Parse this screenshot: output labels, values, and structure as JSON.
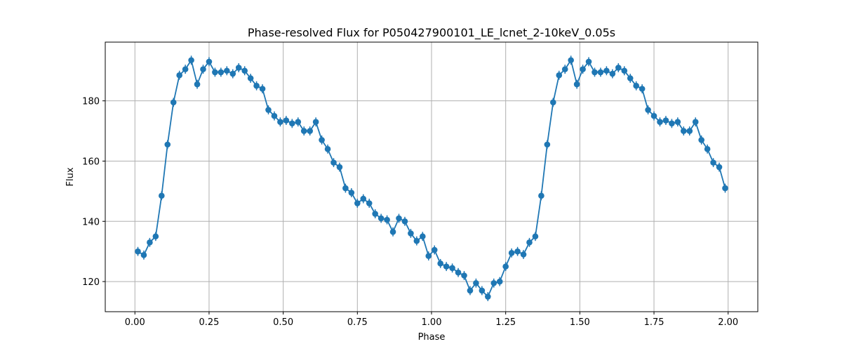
{
  "chart_data": {
    "type": "line",
    "title": "Phase-resolved Flux for P050427900101_LE_lcnet_2-10keV_0.05s",
    "xlabel": "Phase",
    "ylabel": "Flux",
    "xlim": [
      -0.1,
      2.1
    ],
    "ylim": [
      110,
      199.5
    ],
    "xticks": [
      0.0,
      0.25,
      0.5,
      0.75,
      1.0,
      1.25,
      1.5,
      1.75,
      2.0
    ],
    "xtick_labels": [
      "0.00",
      "0.25",
      "0.50",
      "0.75",
      "1.00",
      "1.25",
      "1.50",
      "1.75",
      "2.00"
    ],
    "yticks": [
      120,
      140,
      160,
      180
    ],
    "ytick_labels": [
      "120",
      "140",
      "160",
      "180"
    ],
    "grid": true,
    "color": "#1f77b4",
    "error": 1.5,
    "series": [
      {
        "x": [
          0.01,
          0.03,
          0.05,
          0.07,
          0.09,
          0.11,
          0.13,
          0.15,
          0.17,
          0.19,
          0.21,
          0.23,
          0.25,
          0.27,
          0.29,
          0.31,
          0.33,
          0.35,
          0.37,
          0.39,
          0.41,
          0.43,
          0.45,
          0.47,
          0.49,
          0.51,
          0.53,
          0.55,
          0.57,
          0.59,
          0.61,
          0.63,
          0.65,
          0.67,
          0.69,
          0.71,
          0.73,
          0.75,
          0.77,
          0.79,
          0.81,
          0.83,
          0.85,
          0.87,
          0.89,
          0.91,
          0.93,
          0.95,
          0.97,
          0.99,
          1.01,
          1.03,
          1.05,
          1.07,
          1.09,
          1.11,
          1.13,
          1.15,
          1.17,
          1.19,
          1.21,
          1.23,
          1.25,
          1.27,
          1.29,
          1.31,
          1.33,
          1.35,
          1.37,
          1.39,
          1.41,
          1.43,
          1.45,
          1.47,
          1.49,
          1.51,
          1.53,
          1.55,
          1.57,
          1.59,
          1.61,
          1.63,
          1.65,
          1.67,
          1.69,
          1.71,
          1.73,
          1.75,
          1.77,
          1.79,
          1.81,
          1.83,
          1.85,
          1.87,
          1.89,
          1.91,
          1.93,
          1.95,
          1.97,
          1.99
        ],
        "y": [
          130.0,
          128.8,
          133.0,
          135.0,
          148.5,
          165.5,
          179.5,
          188.5,
          190.5,
          193.5,
          185.5,
          190.5,
          193.0,
          189.5,
          189.5,
          190.0,
          189.0,
          191.0,
          190.0,
          187.5,
          185.0,
          184.0,
          177.0,
          175.0,
          173.0,
          173.5,
          172.5,
          173.0,
          170.0,
          170.0,
          173.0,
          167.0,
          164.0,
          159.5,
          158.0,
          151.0,
          149.5,
          146.0,
          147.5,
          146.0,
          142.5,
          141.0,
          140.5,
          136.5,
          141.0,
          140.0,
          136.0,
          133.5,
          135.0,
          128.5,
          130.5,
          126.0,
          125.0,
          124.5,
          123.0,
          122.0,
          117.0,
          119.5,
          117.0,
          115.0,
          119.5,
          120.0,
          125.0,
          129.5,
          130.0,
          129.0,
          133.0,
          135.0,
          148.5,
          165.5,
          179.5,
          188.5,
          190.5,
          193.5,
          185.5,
          190.5,
          193.0,
          189.5,
          189.5,
          190.0,
          189.0,
          191.0,
          190.0,
          187.5,
          185.0,
          184.0,
          177.0,
          175.0,
          173.0,
          173.5,
          172.5,
          173.0,
          170.0,
          170.0,
          173.0,
          167.0,
          164.0,
          159.5,
          158.0,
          151.0
        ]
      }
    ]
  }
}
